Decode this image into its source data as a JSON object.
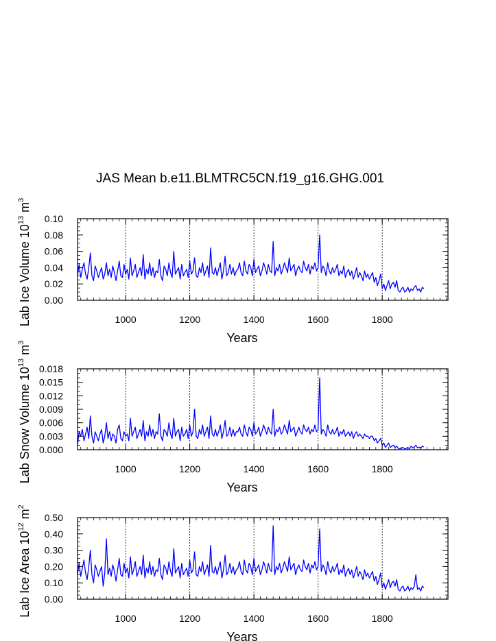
{
  "title": "JAS Mean b.e11.BLMTRC5CN.f19_g16.GHG.001",
  "colors": {
    "series": "#0000ff",
    "axes": "#000000",
    "grid": "#000000"
  },
  "chart_data": [
    {
      "type": "line",
      "ylabel": {
        "text": "Lab Ice Volume 10",
        "exp": "13",
        "unit": " m",
        "unit_exp": "3"
      },
      "xlabel": "Years",
      "xlim": [
        850,
        2005
      ],
      "ylim": [
        0.0,
        0.1
      ],
      "yticks": [
        0.0,
        0.02,
        0.04,
        0.06,
        0.08,
        0.1
      ],
      "ytick_labels": [
        "0.00",
        "0.02",
        "0.04",
        "0.06",
        "0.08",
        "0.10"
      ],
      "xticks": [
        1000,
        1200,
        1400,
        1600,
        1800
      ],
      "xtick_labels": [
        "1000",
        "1200",
        "1400",
        "1600",
        "1800"
      ],
      "vgrid": [
        1000,
        1200,
        1400,
        1600,
        1800
      ],
      "yminor": 0.005,
      "xminor": 20,
      "series": [
        {
          "name": "Lab Ice Volume",
          "x_start": 850,
          "x_step": 5,
          "values": [
            0.03,
            0.044,
            0.028,
            0.038,
            0.046,
            0.032,
            0.026,
            0.04,
            0.058,
            0.03,
            0.024,
            0.042,
            0.036,
            0.028,
            0.034,
            0.04,
            0.026,
            0.032,
            0.046,
            0.03,
            0.038,
            0.028,
            0.042,
            0.034,
            0.024,
            0.036,
            0.048,
            0.03,
            0.028,
            0.044,
            0.032,
            0.038,
            0.026,
            0.052,
            0.03,
            0.036,
            0.044,
            0.028,
            0.034,
            0.04,
            0.03,
            0.056,
            0.026,
            0.038,
            0.032,
            0.046,
            0.03,
            0.04,
            0.028,
            0.036,
            0.034,
            0.05,
            0.03,
            0.024,
            0.042,
            0.038,
            0.03,
            0.046,
            0.034,
            0.028,
            0.06,
            0.032,
            0.036,
            0.04,
            0.026,
            0.044,
            0.03,
            0.034,
            0.038,
            0.028,
            0.048,
            0.032,
            0.036,
            0.052,
            0.03,
            0.028,
            0.04,
            0.034,
            0.046,
            0.03,
            0.036,
            0.042,
            0.028,
            0.064,
            0.034,
            0.032,
            0.04,
            0.03,
            0.038,
            0.046,
            0.026,
            0.036,
            0.054,
            0.03,
            0.034,
            0.044,
            0.032,
            0.04,
            0.03,
            0.036,
            0.038,
            0.046,
            0.034,
            0.03,
            0.048,
            0.036,
            0.032,
            0.044,
            0.04,
            0.03,
            0.05,
            0.034,
            0.038,
            0.042,
            0.03,
            0.036,
            0.046,
            0.04,
            0.032,
            0.044,
            0.036,
            0.034,
            0.072,
            0.03,
            0.04,
            0.036,
            0.044,
            0.032,
            0.038,
            0.046,
            0.04,
            0.034,
            0.052,
            0.036,
            0.04,
            0.044,
            0.03,
            0.038,
            0.042,
            0.036,
            0.034,
            0.048,
            0.04,
            0.036,
            0.044,
            0.032,
            0.042,
            0.038,
            0.046,
            0.036,
            0.04,
            0.08,
            0.034,
            0.042,
            0.038,
            0.03,
            0.046,
            0.036,
            0.032,
            0.04,
            0.034,
            0.038,
            0.044,
            0.03,
            0.036,
            0.032,
            0.042,
            0.028,
            0.034,
            0.038,
            0.03,
            0.036,
            0.026,
            0.032,
            0.04,
            0.028,
            0.034,
            0.03,
            0.024,
            0.036,
            0.028,
            0.032,
            0.026,
            0.03,
            0.034,
            0.022,
            0.028,
            0.018,
            0.024,
            0.032,
            0.014,
            0.02,
            0.012,
            0.018,
            0.024,
            0.014,
            0.02,
            0.022,
            0.016,
            0.024,
            0.012,
            0.01,
            0.014,
            0.016,
            0.01,
            0.012,
            0.016,
            0.01,
            0.014,
            0.012,
            0.016,
            0.018,
            0.012,
            0.014,
            0.01,
            0.016,
            0.014
          ]
        }
      ]
    },
    {
      "type": "line",
      "ylabel": {
        "text": "Lab Snow Volume 10",
        "exp": "13",
        "unit": " m",
        "unit_exp": "3"
      },
      "xlabel": "Years",
      "xlim": [
        850,
        2005
      ],
      "ylim": [
        0.0,
        0.018
      ],
      "yticks": [
        0.0,
        0.003,
        0.006,
        0.009,
        0.012,
        0.015,
        0.018
      ],
      "ytick_labels": [
        "0.000",
        "0.003",
        "0.006",
        "0.009",
        "0.012",
        "0.015",
        "0.018"
      ],
      "xticks": [
        1000,
        1200,
        1400,
        1600,
        1800
      ],
      "xtick_labels": [
        "1000",
        "1200",
        "1400",
        "1600",
        "1800"
      ],
      "vgrid": [
        1000,
        1200,
        1400,
        1600,
        1800
      ],
      "yminor": 0.001,
      "xminor": 20,
      "series": [
        {
          "name": "Lab Snow Volume",
          "x_start": 850,
          "x_step": 5,
          "values": [
            0.001,
            0.004,
            0.003,
            0.0045,
            0.002,
            0.0035,
            0.005,
            0.0025,
            0.0075,
            0.003,
            0.0015,
            0.004,
            0.003,
            0.002,
            0.0035,
            0.0045,
            0.0015,
            0.003,
            0.006,
            0.0025,
            0.004,
            0.002,
            0.0035,
            0.003,
            0.0015,
            0.0045,
            0.0055,
            0.0025,
            0.002,
            0.004,
            0.003,
            0.0035,
            0.002,
            0.007,
            0.003,
            0.004,
            0.005,
            0.0025,
            0.0035,
            0.0045,
            0.003,
            0.0065,
            0.002,
            0.004,
            0.003,
            0.0055,
            0.003,
            0.0045,
            0.0025,
            0.004,
            0.0035,
            0.008,
            0.003,
            0.002,
            0.0045,
            0.004,
            0.003,
            0.006,
            0.0035,
            0.0025,
            0.007,
            0.003,
            0.004,
            0.0045,
            0.002,
            0.005,
            0.003,
            0.0035,
            0.0045,
            0.0025,
            0.0055,
            0.003,
            0.004,
            0.009,
            0.003,
            0.0025,
            0.0045,
            0.0035,
            0.0055,
            0.003,
            0.004,
            0.005,
            0.0025,
            0.0075,
            0.0035,
            0.003,
            0.0045,
            0.003,
            0.004,
            0.0055,
            0.0025,
            0.004,
            0.0065,
            0.003,
            0.0035,
            0.005,
            0.003,
            0.0045,
            0.003,
            0.004,
            0.004,
            0.005,
            0.0035,
            0.003,
            0.0055,
            0.004,
            0.003,
            0.005,
            0.0045,
            0.003,
            0.006,
            0.0035,
            0.004,
            0.005,
            0.003,
            0.004,
            0.0055,
            0.0045,
            0.0035,
            0.005,
            0.004,
            0.0035,
            0.009,
            0.003,
            0.0045,
            0.004,
            0.005,
            0.0035,
            0.004,
            0.0055,
            0.0045,
            0.0035,
            0.0065,
            0.004,
            0.0045,
            0.005,
            0.003,
            0.004,
            0.005,
            0.004,
            0.0035,
            0.0055,
            0.0045,
            0.004,
            0.005,
            0.0035,
            0.0045,
            0.004,
            0.0055,
            0.004,
            0.0045,
            0.016,
            0.0035,
            0.0045,
            0.004,
            0.003,
            0.0055,
            0.004,
            0.0035,
            0.0045,
            0.0035,
            0.004,
            0.005,
            0.003,
            0.004,
            0.0035,
            0.0045,
            0.003,
            0.0035,
            0.004,
            0.003,
            0.004,
            0.0025,
            0.0035,
            0.004,
            0.003,
            0.0035,
            0.003,
            0.0025,
            0.0035,
            0.003,
            0.003,
            0.0025,
            0.003,
            0.003,
            0.002,
            0.0025,
            0.0015,
            0.002,
            0.0025,
            0.001,
            0.0015,
            0.0005,
            0.001,
            0.0015,
            0.0005,
            0.0008,
            0.001,
            0.0005,
            0.0008,
            0.0003,
            0.0002,
            0.0004,
            0.0005,
            0.0002,
            0.0003,
            0.0005,
            0.0002,
            0.0008,
            0.0004,
            0.0006,
            0.001,
            0.0004,
            0.0006,
            0.0003,
            0.0008,
            0.0006
          ]
        }
      ]
    },
    {
      "type": "line",
      "ylabel": {
        "text": "Lab Ice Area 10",
        "exp": "12",
        "unit": " m",
        "unit_exp": "2"
      },
      "xlabel": "Years",
      "xlim": [
        850,
        2005
      ],
      "ylim": [
        0.0,
        0.5
      ],
      "yticks": [
        0.0,
        0.1,
        0.2,
        0.3,
        0.4,
        0.5
      ],
      "ytick_labels": [
        "0.00",
        "0.10",
        "0.20",
        "0.30",
        "0.40",
        "0.50"
      ],
      "xticks": [
        1000,
        1200,
        1400,
        1600,
        1800
      ],
      "xtick_labels": [
        "1000",
        "1200",
        "1400",
        "1600",
        "1800"
      ],
      "vgrid": [
        1000,
        1200,
        1400,
        1600,
        1800
      ],
      "yminor": 0.025,
      "xminor": 20,
      "series": [
        {
          "name": "Lab Ice Area",
          "x_start": 850,
          "x_step": 5,
          "values": [
            0.15,
            0.22,
            0.14,
            0.19,
            0.24,
            0.16,
            0.12,
            0.2,
            0.3,
            0.15,
            0.1,
            0.21,
            0.18,
            0.14,
            0.17,
            0.2,
            0.08,
            0.16,
            0.37,
            0.15,
            0.19,
            0.14,
            0.21,
            0.17,
            0.11,
            0.18,
            0.25,
            0.15,
            0.14,
            0.22,
            0.16,
            0.19,
            0.13,
            0.26,
            0.15,
            0.18,
            0.23,
            0.14,
            0.17,
            0.2,
            0.15,
            0.27,
            0.13,
            0.19,
            0.16,
            0.23,
            0.15,
            0.2,
            0.14,
            0.18,
            0.17,
            0.25,
            0.15,
            0.12,
            0.21,
            0.19,
            0.15,
            0.23,
            0.17,
            0.14,
            0.31,
            0.16,
            0.18,
            0.2,
            0.13,
            0.22,
            0.15,
            0.17,
            0.19,
            0.14,
            0.24,
            0.16,
            0.18,
            0.29,
            0.15,
            0.14,
            0.2,
            0.17,
            0.23,
            0.15,
            0.18,
            0.21,
            0.14,
            0.33,
            0.17,
            0.16,
            0.2,
            0.15,
            0.19,
            0.23,
            0.13,
            0.18,
            0.27,
            0.15,
            0.17,
            0.22,
            0.16,
            0.2,
            0.15,
            0.18,
            0.19,
            0.23,
            0.17,
            0.15,
            0.24,
            0.18,
            0.16,
            0.22,
            0.2,
            0.15,
            0.25,
            0.17,
            0.19,
            0.21,
            0.15,
            0.18,
            0.23,
            0.2,
            0.16,
            0.22,
            0.18,
            0.17,
            0.45,
            0.15,
            0.2,
            0.18,
            0.22,
            0.16,
            0.19,
            0.23,
            0.2,
            0.17,
            0.26,
            0.18,
            0.2,
            0.22,
            0.15,
            0.19,
            0.21,
            0.18,
            0.17,
            0.24,
            0.2,
            0.18,
            0.22,
            0.16,
            0.21,
            0.19,
            0.23,
            0.18,
            0.2,
            0.43,
            0.17,
            0.21,
            0.19,
            0.15,
            0.23,
            0.18,
            0.16,
            0.2,
            0.17,
            0.19,
            0.22,
            0.15,
            0.18,
            0.16,
            0.21,
            0.14,
            0.17,
            0.19,
            0.15,
            0.18,
            0.13,
            0.16,
            0.2,
            0.14,
            0.17,
            0.15,
            0.12,
            0.18,
            0.14,
            0.16,
            0.13,
            0.15,
            0.17,
            0.11,
            0.14,
            0.09,
            0.12,
            0.16,
            0.07,
            0.1,
            0.06,
            0.09,
            0.12,
            0.07,
            0.1,
            0.11,
            0.08,
            0.12,
            0.06,
            0.05,
            0.07,
            0.08,
            0.05,
            0.06,
            0.08,
            0.05,
            0.07,
            0.06,
            0.08,
            0.15,
            0.06,
            0.07,
            0.05,
            0.08,
            0.07
          ]
        }
      ]
    }
  ]
}
